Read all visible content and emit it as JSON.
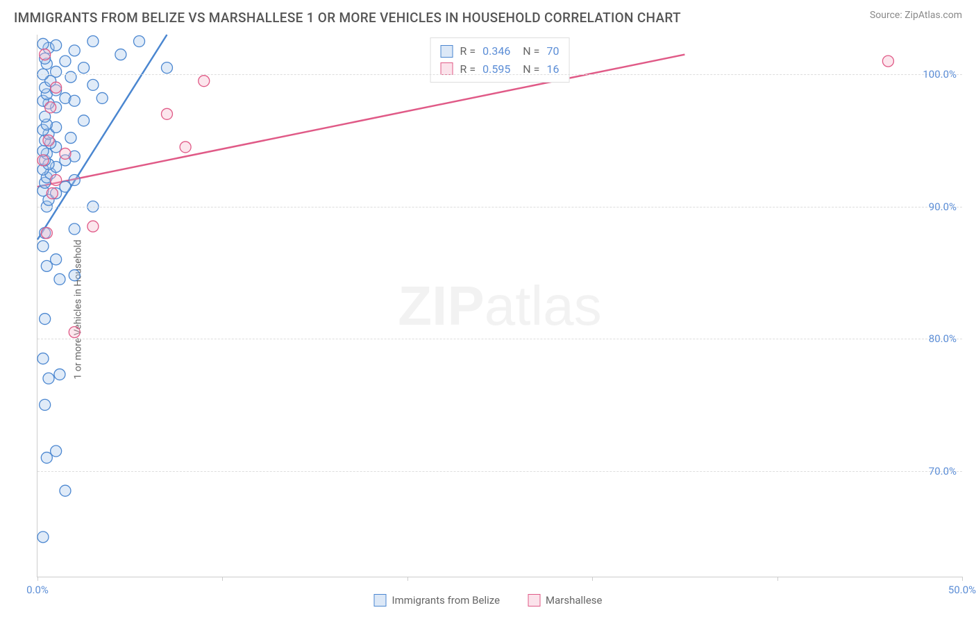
{
  "title": "IMMIGRANTS FROM BELIZE VS MARSHALLESE 1 OR MORE VEHICLES IN HOUSEHOLD CORRELATION CHART",
  "source": "Source: ZipAtlas.com",
  "watermark": {
    "bold": "ZIP",
    "rest": "atlas"
  },
  "y_axis_label": "1 or more Vehicles in Household",
  "chart": {
    "type": "scatter",
    "xlim": [
      0,
      50
    ],
    "ylim": [
      62,
      103
    ],
    "x_ticks": [
      0,
      10,
      20,
      30,
      40,
      50
    ],
    "x_tick_labels": [
      "0.0%",
      "",
      "",
      "",
      "",
      "50.0%"
    ],
    "y_ticks": [
      70,
      80,
      90,
      100
    ],
    "y_tick_labels": [
      "70.0%",
      "80.0%",
      "90.0%",
      "100.0%"
    ],
    "grid_color": "#dddddd",
    "background_color": "#ffffff",
    "marker_radius": 8,
    "marker_stroke_width": 1.3,
    "marker_fill_opacity": 0.35,
    "line_width": 2.5,
    "series": [
      {
        "name": "Immigrants from Belize",
        "color_stroke": "#4a86d0",
        "color_fill": "#a7c5ea",
        "r": 0.346,
        "n": 70,
        "regression": {
          "x1": 0,
          "y1": 87.5,
          "x2": 7,
          "y2": 103
        },
        "points": [
          [
            0.3,
            65.0
          ],
          [
            1.5,
            68.5
          ],
          [
            0.5,
            71.0
          ],
          [
            1.0,
            71.5
          ],
          [
            0.4,
            75.0
          ],
          [
            0.6,
            77.0
          ],
          [
            1.2,
            77.3
          ],
          [
            0.3,
            78.5
          ],
          [
            0.4,
            81.5
          ],
          [
            1.2,
            84.5
          ],
          [
            2.0,
            84.8
          ],
          [
            0.5,
            85.5
          ],
          [
            1.0,
            86.0
          ],
          [
            0.3,
            87.0
          ],
          [
            0.4,
            88.0
          ],
          [
            2.0,
            88.3
          ],
          [
            3.0,
            90.0
          ],
          [
            0.5,
            90.0
          ],
          [
            0.6,
            90.5
          ],
          [
            1.0,
            91.0
          ],
          [
            0.3,
            91.2
          ],
          [
            1.5,
            91.5
          ],
          [
            0.4,
            91.8
          ],
          [
            2.0,
            92.0
          ],
          [
            0.5,
            92.2
          ],
          [
            0.7,
            92.5
          ],
          [
            0.3,
            92.8
          ],
          [
            1.0,
            93.0
          ],
          [
            0.6,
            93.2
          ],
          [
            0.4,
            93.5
          ],
          [
            1.5,
            93.5
          ],
          [
            2.0,
            93.8
          ],
          [
            0.5,
            94.0
          ],
          [
            0.3,
            94.2
          ],
          [
            1.0,
            94.5
          ],
          [
            0.7,
            94.8
          ],
          [
            0.4,
            95.0
          ],
          [
            1.8,
            95.2
          ],
          [
            0.6,
            95.5
          ],
          [
            0.3,
            95.8
          ],
          [
            1.0,
            96.0
          ],
          [
            0.5,
            96.2
          ],
          [
            2.5,
            96.5
          ],
          [
            0.4,
            96.8
          ],
          [
            1.0,
            97.5
          ],
          [
            0.6,
            97.8
          ],
          [
            0.3,
            98.0
          ],
          [
            1.5,
            98.2
          ],
          [
            2.0,
            98.0
          ],
          [
            3.5,
            98.2
          ],
          [
            0.5,
            98.5
          ],
          [
            1.0,
            98.8
          ],
          [
            0.4,
            99.0
          ],
          [
            3.0,
            99.2
          ],
          [
            0.7,
            99.5
          ],
          [
            1.8,
            99.8
          ],
          [
            0.3,
            100.0
          ],
          [
            1.0,
            100.2
          ],
          [
            2.5,
            100.5
          ],
          [
            0.5,
            100.8
          ],
          [
            1.5,
            101.0
          ],
          [
            0.4,
            101.2
          ],
          [
            4.5,
            101.5
          ],
          [
            2.0,
            101.8
          ],
          [
            0.6,
            102.0
          ],
          [
            1.0,
            102.2
          ],
          [
            0.3,
            102.3
          ],
          [
            3.0,
            102.5
          ],
          [
            5.5,
            102.5
          ],
          [
            7.0,
            100.5
          ]
        ]
      },
      {
        "name": "Marshallese",
        "color_stroke": "#e05a87",
        "color_fill": "#f5b8cc",
        "r": 0.595,
        "n": 16,
        "regression": {
          "x1": 0,
          "y1": 91.5,
          "x2": 35,
          "y2": 101.5
        },
        "points": [
          [
            2.0,
            80.5
          ],
          [
            0.5,
            88.0
          ],
          [
            3.0,
            88.5
          ],
          [
            0.8,
            91.0
          ],
          [
            1.0,
            92.0
          ],
          [
            0.3,
            93.5
          ],
          [
            1.5,
            94.0
          ],
          [
            0.6,
            95.0
          ],
          [
            8.0,
            94.5
          ],
          [
            7.0,
            97.0
          ],
          [
            9.0,
            99.5
          ],
          [
            0.4,
            101.5
          ],
          [
            0.7,
            97.5
          ],
          [
            1.0,
            99.0
          ],
          [
            26.0,
            101.0
          ],
          [
            46.0,
            101.0
          ]
        ]
      }
    ]
  },
  "legend_bottom": [
    {
      "label": "Immigrants from Belize",
      "stroke": "#4a86d0",
      "fill": "#a7c5ea"
    },
    {
      "label": "Marshallese",
      "stroke": "#e05a87",
      "fill": "#f5b8cc"
    }
  ]
}
